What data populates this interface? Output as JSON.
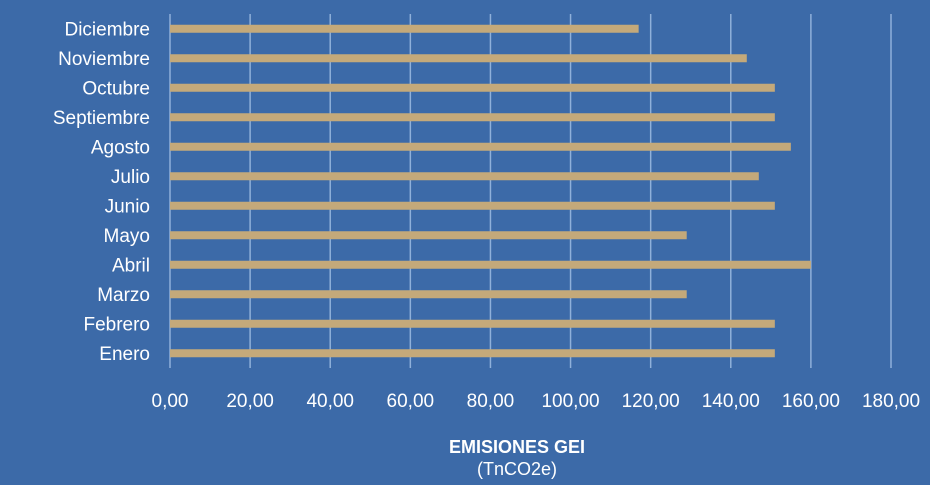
{
  "chart_data": {
    "type": "bar",
    "orientation": "horizontal",
    "categories": [
      "Enero",
      "Febrero",
      "Marzo",
      "Abril",
      "Mayo",
      "Junio",
      "Julio",
      "Agosto",
      "Septiembre",
      "Octubre",
      "Noviembre",
      "Diciembre"
    ],
    "values": [
      151,
      151,
      129,
      160,
      129,
      151,
      147,
      155,
      151,
      151,
      144,
      117
    ],
    "xlim": [
      0,
      180
    ],
    "xticks": [
      "0,00",
      "20,00",
      "40,00",
      "60,00",
      "80,00",
      "100,00",
      "120,00",
      "140,00",
      "160,00",
      "180,00"
    ],
    "xlabel": "EMISIONES GEI",
    "xunit": "(TnCO2e)",
    "grid": "vertical",
    "bar_color": "#c4a97a",
    "grid_color": "#8fb0da",
    "background": "#3c6aa8"
  }
}
